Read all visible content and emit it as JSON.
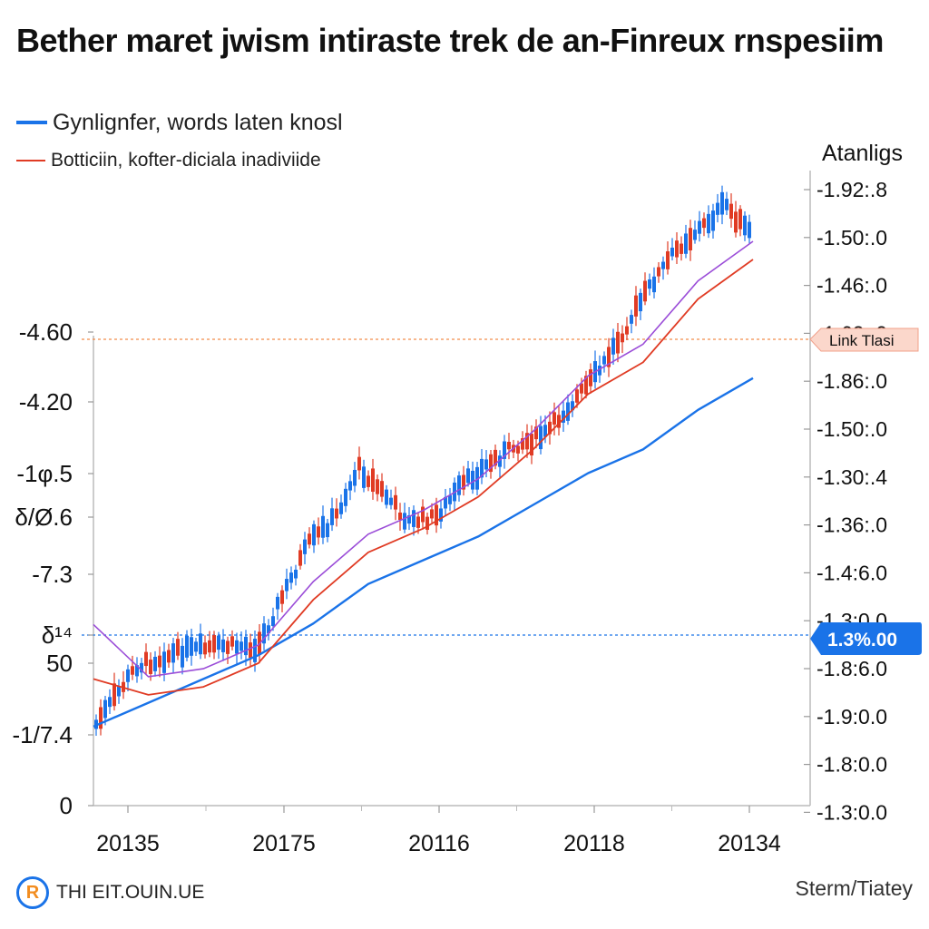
{
  "title": "Bether maret jwism intiraste trek de an-Finreux rnspesiim",
  "legend": [
    {
      "label": "Gynlignfer, words laten knosl",
      "color": "#1a73e8"
    },
    {
      "label": "Botticiin, kofter-diciala inadiviide",
      "color": "#e03b24"
    }
  ],
  "right_axis_title": "Atanligs",
  "right_tick_labels": [
    "-1.92:.8",
    "-1.50:.0",
    "-1.46:.0",
    "-1.62:.0",
    "-1.86:.0",
    "-1.50:.0",
    "-1.30:.4",
    "-1.36:.0",
    "-1.4:6.0",
    "-1.3:0.0",
    "-1.8:6.0",
    "-1.9:0.0",
    "-1.8:0.0",
    "-1.3:0.0"
  ],
  "left_tick_labels": [
    "-4.60",
    "-4.20",
    "-1φ.5",
    "δ/Ø.6",
    "-7.3",
    "δ¹⁴",
    "50",
    "-1/7.4",
    "0"
  ],
  "x_tick_labels": [
    "20135",
    "20175",
    "20116",
    "20118",
    "20134"
  ],
  "annotations": {
    "upper_line_label": "Link Tlasi",
    "lower_line_label": "1.3%.00"
  },
  "colors": {
    "blue": "#1a73e8",
    "red": "#e03b24",
    "purple": "#9b4dd8",
    "candle_up": "#1a73e8",
    "candle_down": "#e03b24",
    "upper_line": "#f28c4a",
    "lower_line": "#1a73e8"
  },
  "footer": {
    "left_text": "THI EIT.OUIN.UE",
    "right_text": "Sterm/Tiatey",
    "logo_icon": "r-logo-icon"
  },
  "chart_data": {
    "type": "line",
    "x": [
      2013.5,
      2014.0,
      2014.5,
      2015.0,
      2015.5,
      2016.0,
      2016.5,
      2017.0,
      2017.5,
      2018.0,
      2018.5,
      2019.0,
      2019.5
    ],
    "series": [
      {
        "name": "Gynlignfer, words laten knosl",
        "values": [
          1.0,
          1.3,
          1.6,
          1.9,
          2.3,
          2.8,
          3.1,
          3.4,
          3.8,
          4.2,
          4.5,
          5.0,
          5.4
        ]
      },
      {
        "name": "Botticiin, kofter-diciala inadiviide",
        "values": [
          1.6,
          1.4,
          1.5,
          1.8,
          2.6,
          3.2,
          3.5,
          3.9,
          4.5,
          5.2,
          5.6,
          6.4,
          6.9
        ]
      }
    ],
    "ylim": [
      0,
      8
    ]
  }
}
